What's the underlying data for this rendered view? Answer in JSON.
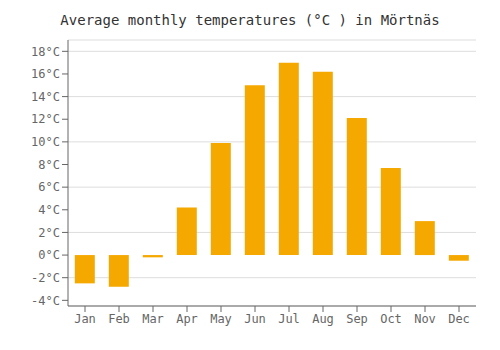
{
  "chart_data": {
    "type": "bar",
    "title": "Average monthly temperatures (°C ) in Mörtnäs",
    "categories": [
      "Jan",
      "Feb",
      "Mar",
      "Apr",
      "May",
      "Jun",
      "Jul",
      "Aug",
      "Sep",
      "Oct",
      "Nov",
      "Dec"
    ],
    "values": [
      -2.5,
      -2.8,
      -0.2,
      4.2,
      9.9,
      15.0,
      17.0,
      16.2,
      12.1,
      7.7,
      3.0,
      -0.5
    ],
    "color": "#F5A800",
    "ylim": [
      -4.5,
      19
    ],
    "yticks": [
      {
        "value": -4,
        "label": "-4°C"
      },
      {
        "value": -2,
        "label": "-2°C"
      },
      {
        "value": 0,
        "label": "0°C"
      },
      {
        "value": 2,
        "label": "2°C"
      },
      {
        "value": 4,
        "label": "4°C"
      },
      {
        "value": 6,
        "label": "6°C"
      },
      {
        "value": 8,
        "label": "8°C"
      },
      {
        "value": 10,
        "label": "10°C"
      },
      {
        "value": 12,
        "label": "12°C"
      },
      {
        "value": 14,
        "label": "14°C"
      },
      {
        "value": 16,
        "label": "16°C"
      },
      {
        "value": 18,
        "label": "18°C"
      }
    ],
    "grid": true
  }
}
